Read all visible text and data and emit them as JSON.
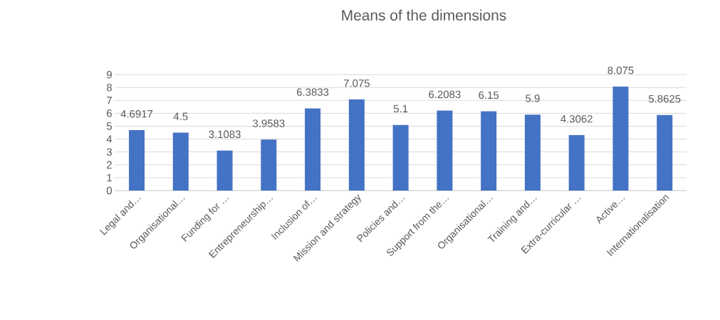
{
  "chart_data": {
    "type": "bar",
    "title": "Means of the dimensions",
    "categories": [
      "Legal and…",
      "Organisational…",
      "Funding for …",
      "Entrepreneurship…",
      "Inclusion of…",
      "Mission and strategy",
      "Policies and…",
      "Support from the…",
      "Organisational…",
      "Training and…",
      "Extra-curricular …",
      "Active…",
      "Internationalisation"
    ],
    "values": [
      4.6917,
      4.5,
      3.1083,
      3.9583,
      6.3833,
      7.075,
      5.1,
      6.2083,
      6.15,
      5.9,
      4.3062,
      8.075,
      5.8625
    ],
    "color": "#4472c4",
    "ylim": [
      0,
      9
    ],
    "yticks": [
      0,
      1,
      2,
      3,
      4,
      5,
      6,
      7,
      8,
      9
    ],
    "grid": "y",
    "data_labels": true
  }
}
